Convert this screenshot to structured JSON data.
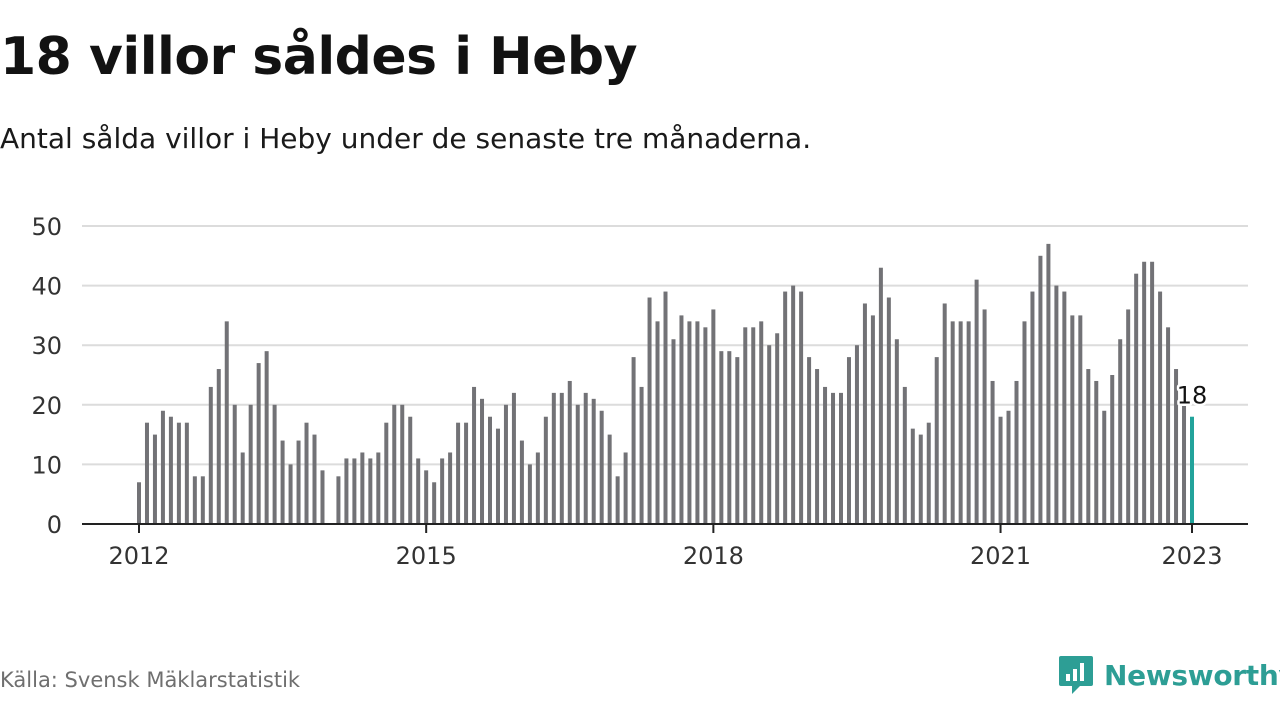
{
  "title": "18 villor såldes i Heby",
  "subtitle": "Antal sålda villor i Heby under de senaste tre månaderna.",
  "source": "Källa: Svensk Mäklarstatistik",
  "brand": {
    "name": "Newsworthy",
    "icon": "newsworthy-logo-icon",
    "color": "#2d9e95"
  },
  "chart_data": {
    "type": "bar",
    "title": "",
    "xlabel": "",
    "ylabel": "",
    "ylim": [
      0,
      50
    ],
    "yticks": [
      0,
      10,
      20,
      30,
      40,
      50
    ],
    "xticks": [
      "2012",
      "2015",
      "2018",
      "2021",
      "2023"
    ],
    "grid": true,
    "x_start": "2012-01",
    "x_end": "2023-01",
    "bar_color": "#727276",
    "highlight_color": "#22a39b",
    "highlight_label": "18",
    "series": [
      {
        "values": [
          7,
          17,
          15,
          19,
          18,
          17,
          17,
          8,
          8,
          23,
          26,
          34,
          20,
          12,
          20,
          27,
          29,
          20,
          14,
          10,
          14,
          17,
          15,
          9,
          null,
          8,
          11,
          11,
          12,
          11,
          12,
          17,
          20,
          20,
          18,
          11,
          9,
          7,
          11,
          12,
          17,
          17,
          23,
          21,
          18,
          16,
          20,
          22,
          14,
          10,
          12,
          18,
          22,
          22,
          24,
          20,
          22,
          21,
          19,
          15,
          8,
          12,
          28,
          23,
          38,
          34,
          39,
          31,
          35,
          34,
          34,
          33,
          36,
          29,
          29,
          28,
          33,
          33,
          34,
          30,
          32,
          39,
          40,
          39,
          28,
          26,
          23,
          22,
          22,
          28,
          30,
          37,
          35,
          43,
          38,
          31,
          23,
          16,
          15,
          17,
          28,
          37,
          34,
          34,
          34,
          41,
          36,
          24,
          18,
          19,
          24,
          34,
          39,
          45,
          47,
          40,
          39,
          35,
          35,
          26,
          24,
          19,
          25,
          31,
          36,
          42,
          44,
          44,
          39,
          33,
          26,
          20,
          18
        ]
      }
    ]
  }
}
